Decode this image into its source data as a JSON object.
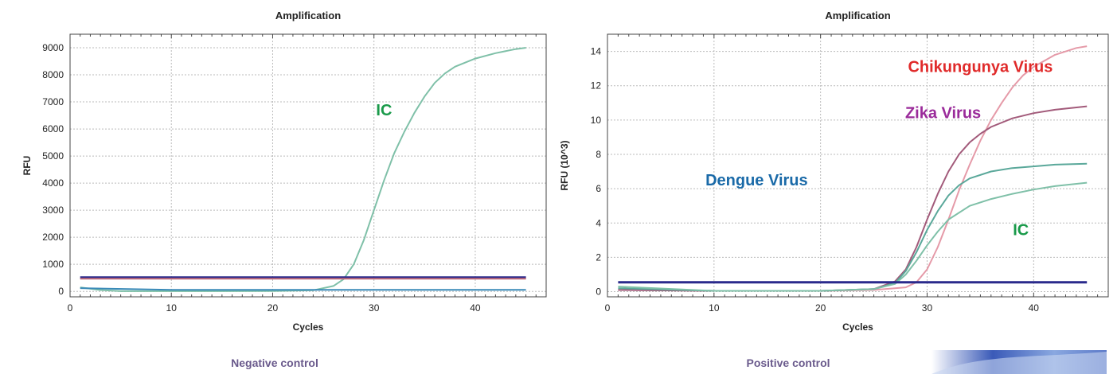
{
  "chart_data": [
    {
      "type": "line",
      "title": "Amplification",
      "xlabel": "Cycles",
      "ylabel": "RFU",
      "xlim": [
        0,
        47
      ],
      "ylim": [
        -200,
        9500
      ],
      "xticks": [
        0,
        10,
        20,
        30,
        40
      ],
      "yticks": [
        0,
        1000,
        2000,
        3000,
        4000,
        5000,
        6000,
        7000,
        8000,
        9000
      ],
      "grid": true,
      "caption": "Negative control",
      "annotations": [
        {
          "text": "IC",
          "x": 31,
          "y": 6500,
          "color": "#1a9a4a"
        }
      ],
      "series": [
        {
          "color": "#7fc0a8",
          "x": [
            1,
            3,
            5,
            10,
            15,
            20,
            24,
            26,
            27,
            28,
            29,
            30,
            31,
            32,
            33,
            34,
            35,
            36,
            37,
            38,
            39,
            40,
            42,
            44,
            45
          ],
          "y": [
            150,
            50,
            10,
            10,
            10,
            15,
            40,
            200,
            450,
            1000,
            1900,
            3000,
            4100,
            5100,
            5900,
            6600,
            7200,
            7700,
            8050,
            8300,
            8450,
            8600,
            8800,
            8950,
            9000
          ]
        },
        {
          "color": "#2a2a8c",
          "x": [
            1,
            45
          ],
          "y": [
            510,
            510
          ]
        },
        {
          "color": "#c26a78",
          "x": [
            1,
            45
          ],
          "y": [
            470,
            470
          ]
        },
        {
          "color": "#3a8ab8",
          "x": [
            1,
            10,
            45
          ],
          "y": [
            120,
            60,
            60
          ]
        }
      ]
    },
    {
      "type": "line",
      "title": "Amplification",
      "xlabel": "Cycles",
      "ylabel": "RFU (10^3)",
      "xlim": [
        0,
        47
      ],
      "ylim": [
        -0.3,
        15
      ],
      "xticks": [
        0,
        10,
        20,
        30,
        40
      ],
      "yticks": [
        0,
        2,
        4,
        6,
        8,
        10,
        12,
        14
      ],
      "grid": true,
      "caption": "Positive control",
      "annotations": [
        {
          "text": "Chikungunya Virus",
          "x": 35,
          "y": 12.8,
          "color": "#e02a2a"
        },
        {
          "text": "Zika Virus",
          "x": 31.5,
          "y": 10.1,
          "color": "#9a2a9a"
        },
        {
          "text": "Dengue Virus",
          "x": 14,
          "y": 6.2,
          "color": "#1a6aa8"
        },
        {
          "text": "IC",
          "x": 38.8,
          "y": 3.3,
          "color": "#1a9a4a"
        }
      ],
      "series": [
        {
          "color": "#e59aa8",
          "x": [
            1,
            10,
            20,
            25,
            28,
            29,
            30,
            31,
            32,
            33,
            34,
            35,
            36,
            37,
            38,
            39,
            40,
            42,
            44,
            45
          ],
          "y": [
            0.1,
            0.05,
            0.05,
            0.1,
            0.25,
            0.55,
            1.3,
            2.6,
            4.2,
            5.9,
            7.4,
            8.8,
            10.0,
            11.0,
            11.9,
            12.6,
            13.1,
            13.8,
            14.2,
            14.3
          ]
        },
        {
          "color": "#a25a7a",
          "x": [
            1,
            10,
            20,
            25,
            27,
            28,
            29,
            30,
            31,
            32,
            33,
            34,
            35,
            36,
            38,
            40,
            42,
            45
          ],
          "y": [
            0.1,
            0.05,
            0.05,
            0.15,
            0.6,
            1.3,
            2.6,
            4.2,
            5.7,
            7.0,
            8.0,
            8.7,
            9.2,
            9.6,
            10.1,
            10.4,
            10.6,
            10.8
          ]
        },
        {
          "color": "#5aa89a",
          "x": [
            1,
            10,
            20,
            25,
            27,
            28,
            29,
            30,
            31,
            32,
            33,
            34,
            36,
            38,
            40,
            42,
            45
          ],
          "y": [
            0.2,
            0.05,
            0.05,
            0.15,
            0.5,
            1.2,
            2.3,
            3.6,
            4.7,
            5.6,
            6.2,
            6.6,
            7.0,
            7.2,
            7.3,
            7.4,
            7.45
          ]
        },
        {
          "color": "#7fc0a8",
          "x": [
            1,
            10,
            20,
            25,
            27,
            28,
            29,
            30,
            31,
            32,
            34,
            36,
            38,
            40,
            42,
            45
          ],
          "y": [
            0.3,
            0.05,
            0.05,
            0.15,
            0.45,
            1.0,
            1.8,
            2.7,
            3.5,
            4.2,
            5.0,
            5.4,
            5.7,
            5.95,
            6.15,
            6.35
          ]
        },
        {
          "color": "#2a2a8c",
          "x": [
            1,
            45
          ],
          "y": [
            0.55,
            0.55
          ]
        }
      ]
    }
  ]
}
